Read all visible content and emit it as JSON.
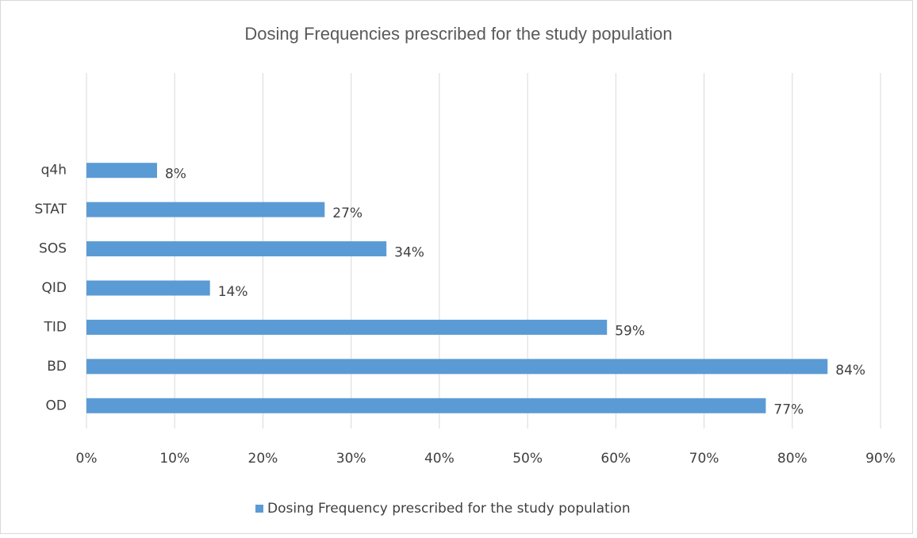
{
  "chart_data": {
    "type": "bar",
    "orientation": "horizontal",
    "title": "Dosing Frequencies prescribed for the study population",
    "categories": [
      "OD",
      "BD",
      "TID",
      "QID",
      "SOS",
      "STAT",
      "q4h"
    ],
    "series": [
      {
        "name": "Dosing Frequency prescribed for the study population",
        "color": "#5b9bd5",
        "values": [
          77,
          84,
          59,
          14,
          34,
          27,
          8
        ],
        "value_labels": [
          "77%",
          "84%",
          "59%",
          "14%",
          "34%",
          "27%",
          "8%"
        ]
      }
    ],
    "xlim": [
      0,
      90
    ],
    "xticks": [
      {
        "value": 0,
        "label": "0%"
      },
      {
        "value": 10,
        "label": "10%"
      },
      {
        "value": 20,
        "label": "20%"
      },
      {
        "value": 30,
        "label": "30%"
      },
      {
        "value": 40,
        "label": "40%"
      },
      {
        "value": 50,
        "label": "50%"
      },
      {
        "value": 60,
        "label": "60%"
      },
      {
        "value": 70,
        "label": "70%"
      },
      {
        "value": 80,
        "label": "80%"
      },
      {
        "value": 90,
        "label": "90%"
      }
    ],
    "grid": true,
    "legend": "bottom"
  }
}
